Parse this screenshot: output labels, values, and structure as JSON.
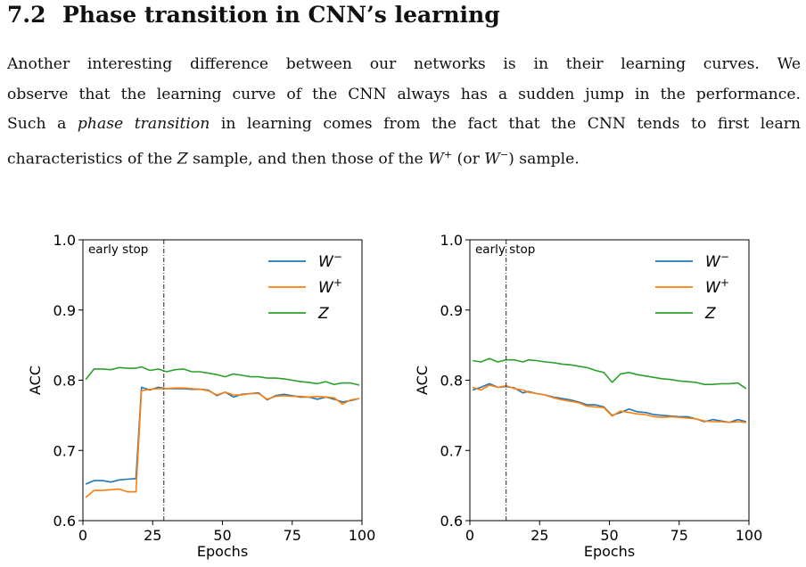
{
  "section": {
    "number": "7.2",
    "title": "Phase transition in CNN’s learning"
  },
  "paragraph": {
    "line1": "Another interesting difference between our networks is in their learning curves.  We",
    "line2": "observe that the learning curve of the CNN always has a sudden jump in the performance.",
    "line3a": "Such a ",
    "line3b": "phase transition",
    "line3c": " in learning comes from the fact that the CNN tends to first learn",
    "line4a": "characteristics of the ",
    "line4z": "Z",
    "line4b": " sample, and then those of the ",
    "line4w1": "W",
    "line4s1": "+",
    "line4c": " (or ",
    "line4w2": "W",
    "line4s2": "−",
    "line4d": ") sample."
  },
  "chart_data": [
    {
      "type": "line",
      "xlabel": "Epochs",
      "ylabel": "ACC",
      "xlim": [
        0,
        100
      ],
      "ylim": [
        0.6,
        1.0
      ],
      "xticks": [
        "0",
        "25",
        "50",
        "75",
        "100"
      ],
      "yticks": [
        "0.6",
        "0.7",
        "0.8",
        "0.9",
        "1.0"
      ],
      "grid": false,
      "legend": "top-right",
      "annotation": {
        "text": "early stop",
        "x": 29
      },
      "x": [
        1,
        4,
        7,
        10,
        13,
        16,
        19,
        21,
        24,
        27,
        30,
        33,
        36,
        39,
        42,
        45,
        48,
        51,
        54,
        57,
        60,
        63,
        66,
        69,
        72,
        75,
        78,
        81,
        84,
        87,
        90,
        93,
        96,
        99
      ],
      "series": [
        {
          "name": "W",
          "sup": "−",
          "color": "#1f77b4",
          "values": [
            0.652,
            0.657,
            0.657,
            0.655,
            0.658,
            0.659,
            0.66,
            0.79,
            0.786,
            0.79,
            0.788,
            0.788,
            0.788,
            0.787,
            0.787,
            0.786,
            0.778,
            0.783,
            0.776,
            0.78,
            0.781,
            0.782,
            0.772,
            0.778,
            0.78,
            0.778,
            0.776,
            0.776,
            0.773,
            0.776,
            0.773,
            0.769,
            0.771,
            0.774
          ]
        },
        {
          "name": "W",
          "sup": "+",
          "color": "#ff7f0e",
          "values": [
            0.633,
            0.643,
            0.643,
            0.644,
            0.645,
            0.641,
            0.641,
            0.785,
            0.787,
            0.788,
            0.788,
            0.789,
            0.789,
            0.788,
            0.787,
            0.785,
            0.779,
            0.783,
            0.779,
            0.779,
            0.781,
            0.781,
            0.773,
            0.777,
            0.778,
            0.777,
            0.777,
            0.776,
            0.777,
            0.776,
            0.775,
            0.766,
            0.772,
            0.774
          ]
        },
        {
          "name": "Z",
          "sup": "",
          "color": "#2ca02c",
          "values": [
            0.801,
            0.816,
            0.816,
            0.815,
            0.818,
            0.817,
            0.817,
            0.819,
            0.814,
            0.816,
            0.812,
            0.815,
            0.816,
            0.812,
            0.812,
            0.81,
            0.808,
            0.805,
            0.809,
            0.807,
            0.805,
            0.805,
            0.803,
            0.803,
            0.802,
            0.8,
            0.798,
            0.797,
            0.795,
            0.798,
            0.794,
            0.796,
            0.796,
            0.793
          ]
        }
      ]
    },
    {
      "type": "line",
      "xlabel": "Epochs",
      "ylabel": "ACC",
      "xlim": [
        0,
        100
      ],
      "ylim": [
        0.6,
        1.0
      ],
      "xticks": [
        "0",
        "25",
        "50",
        "75",
        "100"
      ],
      "yticks": [
        "0.6",
        "0.7",
        "0.8",
        "0.9",
        "1.0"
      ],
      "grid": false,
      "legend": "top-right",
      "annotation": {
        "text": "early stop",
        "x": 13
      },
      "x": [
        1,
        4,
        7,
        10,
        13,
        16,
        19,
        21,
        24,
        27,
        30,
        33,
        36,
        39,
        42,
        45,
        48,
        51,
        54,
        57,
        60,
        63,
        66,
        69,
        72,
        75,
        78,
        81,
        84,
        87,
        90,
        93,
        96,
        99
      ],
      "series": [
        {
          "name": "W",
          "sup": "−",
          "color": "#1f77b4",
          "values": [
            0.786,
            0.79,
            0.795,
            0.79,
            0.791,
            0.789,
            0.782,
            0.784,
            0.781,
            0.779,
            0.776,
            0.774,
            0.772,
            0.769,
            0.765,
            0.765,
            0.762,
            0.75,
            0.754,
            0.759,
            0.755,
            0.754,
            0.751,
            0.75,
            0.749,
            0.748,
            0.748,
            0.745,
            0.741,
            0.744,
            0.742,
            0.74,
            0.744,
            0.741
          ]
        },
        {
          "name": "W",
          "sup": "+",
          "color": "#ff7f0e",
          "values": [
            0.79,
            0.786,
            0.793,
            0.79,
            0.792,
            0.788,
            0.786,
            0.783,
            0.781,
            0.779,
            0.775,
            0.772,
            0.77,
            0.768,
            0.763,
            0.762,
            0.761,
            0.749,
            0.756,
            0.754,
            0.752,
            0.751,
            0.748,
            0.747,
            0.748,
            0.747,
            0.746,
            0.745,
            0.742,
            0.741,
            0.741,
            0.74,
            0.741,
            0.74
          ]
        },
        {
          "name": "Z",
          "sup": "",
          "color": "#2ca02c",
          "values": [
            0.828,
            0.826,
            0.831,
            0.826,
            0.829,
            0.829,
            0.826,
            0.829,
            0.828,
            0.826,
            0.825,
            0.823,
            0.822,
            0.82,
            0.818,
            0.814,
            0.811,
            0.797,
            0.809,
            0.811,
            0.808,
            0.806,
            0.804,
            0.802,
            0.801,
            0.799,
            0.798,
            0.797,
            0.794,
            0.794,
            0.795,
            0.795,
            0.796,
            0.788
          ]
        }
      ]
    }
  ]
}
